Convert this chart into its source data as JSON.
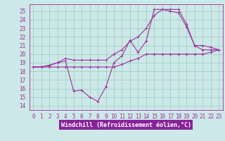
{
  "bg_color": "#cde8e8",
  "line_color": "#993399",
  "grid_color": "#99ccbb",
  "xlabel": "Windchill (Refroidissement éolien,°C)",
  "xlabel_bg": "#882299",
  "ylim": [
    13.5,
    25.8
  ],
  "xlim": [
    -0.5,
    23.5
  ],
  "yticks": [
    14,
    15,
    16,
    17,
    18,
    19,
    20,
    21,
    22,
    23,
    24,
    25
  ],
  "xtick_labels": [
    "0",
    "1",
    "2",
    "3",
    "4",
    "5",
    "6",
    "7",
    "8",
    "9",
    "10",
    "11",
    "12",
    "13",
    "14",
    "15",
    "16",
    "17",
    "18",
    "19",
    "20",
    "21",
    "22",
    "23"
  ],
  "line1_x": [
    0,
    1,
    2,
    3,
    4,
    5,
    6,
    7,
    8,
    9,
    10,
    11,
    12,
    13,
    14,
    15,
    16,
    17,
    18,
    19,
    20,
    21,
    22,
    23
  ],
  "line1_y": [
    18.5,
    18.5,
    18.7,
    19.0,
    19.2,
    15.7,
    15.8,
    15.0,
    14.5,
    16.2,
    19.0,
    19.8,
    21.6,
    20.2,
    21.5,
    25.2,
    25.2,
    25.2,
    25.2,
    23.5,
    21.0,
    21.0,
    20.8,
    20.5
  ],
  "line2_x": [
    0,
    1,
    2,
    3,
    4,
    5,
    6,
    7,
    8,
    9,
    10,
    11,
    12,
    13,
    14,
    15,
    16,
    17,
    18,
    19,
    20,
    21,
    22,
    23
  ],
  "line2_y": [
    18.5,
    18.5,
    18.7,
    19.0,
    19.5,
    19.3,
    19.3,
    19.3,
    19.3,
    19.3,
    20.0,
    20.5,
    21.5,
    22.0,
    23.0,
    24.5,
    25.2,
    25.0,
    24.8,
    23.2,
    21.0,
    20.5,
    20.5,
    20.5
  ],
  "line3_x": [
    0,
    1,
    2,
    3,
    4,
    5,
    6,
    7,
    8,
    9,
    10,
    11,
    12,
    13,
    14,
    15,
    16,
    17,
    18,
    19,
    20,
    21,
    22,
    23
  ],
  "line3_y": [
    18.5,
    18.5,
    18.5,
    18.5,
    18.5,
    18.5,
    18.5,
    18.5,
    18.5,
    18.5,
    18.5,
    18.8,
    19.2,
    19.5,
    20.0,
    20.0,
    20.0,
    20.0,
    20.0,
    20.0,
    20.0,
    20.0,
    20.2,
    20.5
  ],
  "tick_fontsize": 5.5,
  "xlabel_fontsize": 6.0,
  "lw": 0.8,
  "ms": 2.5,
  "mew": 0.7
}
